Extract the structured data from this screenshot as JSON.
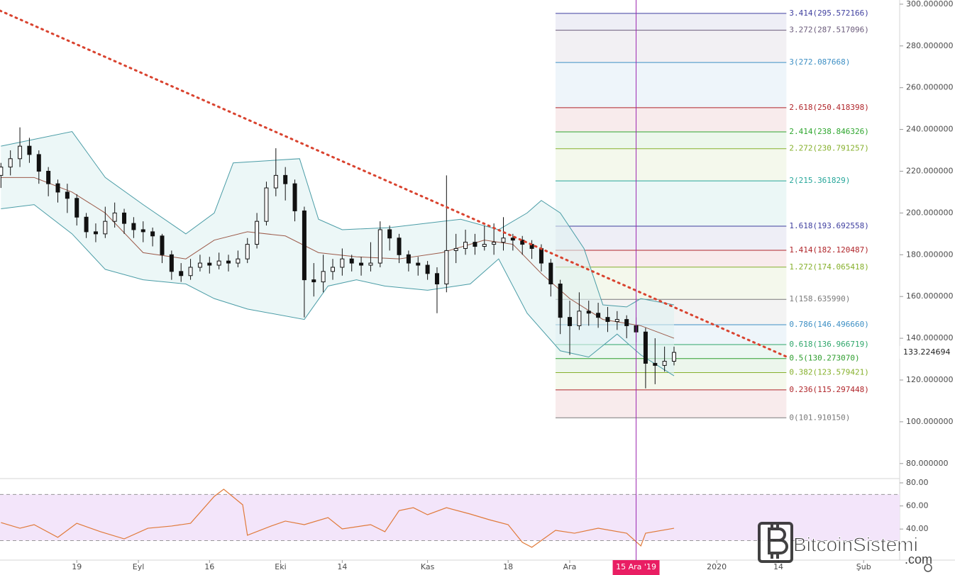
{
  "chart_data": {
    "type": "candlestick",
    "xlim": [
      -16.2,
      173.6
    ],
    "ylim": [
      72.8,
      302
    ],
    "xticks": [
      {
        "value": 0,
        "label": "19"
      },
      {
        "value": 13,
        "label": "Eyl"
      },
      {
        "value": 28,
        "label": "16"
      },
      {
        "value": 43,
        "label": "Eki"
      },
      {
        "value": 56,
        "label": "14"
      },
      {
        "value": 74,
        "label": "Kas"
      },
      {
        "value": 91,
        "label": "18"
      },
      {
        "value": 104,
        "label": "Ara"
      },
      {
        "value": 135,
        "label": "2020"
      },
      {
        "value": 148,
        "label": "14"
      },
      {
        "value": 166,
        "label": "Şub"
      }
    ],
    "yticks": [
      {
        "value": 80,
        "label": "80.000000"
      },
      {
        "value": 100,
        "label": "100.000000"
      },
      {
        "value": 120,
        "label": "120.000000"
      },
      {
        "value": 140,
        "label": "140.000000"
      },
      {
        "value": 160,
        "label": "160.000000"
      },
      {
        "value": 180,
        "label": "180.000000"
      },
      {
        "value": 200,
        "label": "200.000000"
      },
      {
        "value": 220,
        "label": "220.000000"
      },
      {
        "value": 240,
        "label": "240.000000"
      },
      {
        "value": 260,
        "label": "260.000000"
      },
      {
        "value": 280,
        "label": "280.000000"
      },
      {
        "value": 300,
        "label": "300.000000"
      }
    ],
    "crosshair": {
      "value": 118,
      "label": "15 Ara '19",
      "color": "#9c27b0"
    },
    "last_price": 133.224694,
    "candles": [
      {
        "x": -16,
        "open": 218,
        "high": 224,
        "low": 212,
        "close": 222
      },
      {
        "x": -14,
        "open": 222,
        "high": 230,
        "low": 218,
        "close": 226
      },
      {
        "x": -12,
        "open": 226,
        "high": 241,
        "low": 222,
        "close": 232
      },
      {
        "x": -10,
        "open": 232,
        "high": 236,
        "low": 224,
        "close": 228
      },
      {
        "x": -8,
        "open": 228,
        "high": 230,
        "low": 214,
        "close": 220
      },
      {
        "x": -6,
        "open": 220,
        "high": 222,
        "low": 208,
        "close": 214
      },
      {
        "x": -4,
        "open": 214,
        "high": 216,
        "low": 205,
        "close": 210
      },
      {
        "x": -2,
        "open": 210,
        "high": 214,
        "low": 200,
        "close": 207
      },
      {
        "x": 0,
        "open": 207,
        "high": 209,
        "low": 194,
        "close": 198
      },
      {
        "x": 2,
        "open": 198,
        "high": 200,
        "low": 188,
        "close": 191
      },
      {
        "x": 4,
        "open": 191,
        "high": 195,
        "low": 186,
        "close": 190
      },
      {
        "x": 6,
        "open": 190,
        "high": 203,
        "low": 188,
        "close": 196
      },
      {
        "x": 8,
        "open": 196,
        "high": 205,
        "low": 193,
        "close": 200
      },
      {
        "x": 10,
        "open": 200,
        "high": 202,
        "low": 190,
        "close": 195
      },
      {
        "x": 12,
        "open": 195,
        "high": 198,
        "low": 188,
        "close": 192
      },
      {
        "x": 14,
        "open": 192,
        "high": 196,
        "low": 186,
        "close": 191
      },
      {
        "x": 16,
        "open": 191,
        "high": 193,
        "low": 184,
        "close": 189
      },
      {
        "x": 18,
        "open": 189,
        "high": 190,
        "low": 176,
        "close": 180
      },
      {
        "x": 20,
        "open": 180,
        "high": 182,
        "low": 168,
        "close": 172
      },
      {
        "x": 22,
        "open": 172,
        "high": 176,
        "low": 167,
        "close": 170
      },
      {
        "x": 24,
        "open": 170,
        "high": 178,
        "low": 168,
        "close": 174
      },
      {
        "x": 26,
        "open": 174,
        "high": 180,
        "low": 172,
        "close": 176
      },
      {
        "x": 28,
        "open": 176,
        "high": 179,
        "low": 171,
        "close": 175
      },
      {
        "x": 30,
        "open": 175,
        "high": 181,
        "low": 173,
        "close": 177
      },
      {
        "x": 32,
        "open": 177,
        "high": 180,
        "low": 172,
        "close": 176
      },
      {
        "x": 34,
        "open": 176,
        "high": 182,
        "low": 174,
        "close": 178
      },
      {
        "x": 36,
        "open": 178,
        "high": 188,
        "low": 176,
        "close": 185
      },
      {
        "x": 38,
        "open": 185,
        "high": 200,
        "low": 183,
        "close": 196
      },
      {
        "x": 40,
        "open": 196,
        "high": 215,
        "low": 194,
        "close": 212
      },
      {
        "x": 42,
        "open": 212,
        "high": 231,
        "low": 208,
        "close": 218
      },
      {
        "x": 44,
        "open": 218,
        "high": 222,
        "low": 206,
        "close": 214
      },
      {
        "x": 46,
        "open": 214,
        "high": 216,
        "low": 196,
        "close": 201
      },
      {
        "x": 48,
        "open": 201,
        "high": 203,
        "low": 150,
        "close": 168
      },
      {
        "x": 50,
        "open": 168,
        "high": 176,
        "low": 160,
        "close": 167
      },
      {
        "x": 52,
        "open": 167,
        "high": 180,
        "low": 162,
        "close": 172
      },
      {
        "x": 54,
        "open": 172,
        "high": 178,
        "low": 168,
        "close": 174
      },
      {
        "x": 56,
        "open": 174,
        "high": 183,
        "low": 170,
        "close": 178
      },
      {
        "x": 58,
        "open": 178,
        "high": 180,
        "low": 172,
        "close": 176
      },
      {
        "x": 60,
        "open": 176,
        "high": 179,
        "low": 170,
        "close": 175
      },
      {
        "x": 62,
        "open": 175,
        "high": 186,
        "low": 172,
        "close": 176
      },
      {
        "x": 64,
        "open": 176,
        "high": 196,
        "low": 174,
        "close": 192
      },
      {
        "x": 66,
        "open": 192,
        "high": 194,
        "low": 182,
        "close": 188
      },
      {
        "x": 68,
        "open": 188,
        "high": 190,
        "low": 176,
        "close": 180
      },
      {
        "x": 70,
        "open": 180,
        "high": 182,
        "low": 172,
        "close": 176
      },
      {
        "x": 72,
        "open": 176,
        "high": 179,
        "low": 170,
        "close": 175
      },
      {
        "x": 74,
        "open": 175,
        "high": 177,
        "low": 168,
        "close": 171
      },
      {
        "x": 76,
        "open": 171,
        "high": 174,
        "low": 152,
        "close": 166
      },
      {
        "x": 78,
        "open": 166,
        "high": 218,
        "low": 162,
        "close": 182
      },
      {
        "x": 80,
        "open": 182,
        "high": 190,
        "low": 176,
        "close": 183
      },
      {
        "x": 82,
        "open": 183,
        "high": 192,
        "low": 180,
        "close": 186
      },
      {
        "x": 84,
        "open": 186,
        "high": 190,
        "low": 180,
        "close": 184
      },
      {
        "x": 86,
        "open": 184,
        "high": 194,
        "low": 182,
        "close": 185
      },
      {
        "x": 88,
        "open": 185,
        "high": 195,
        "low": 180,
        "close": 186
      },
      {
        "x": 90,
        "open": 186,
        "high": 198,
        "low": 182,
        "close": 188
      },
      {
        "x": 92,
        "open": 188,
        "high": 190,
        "low": 182,
        "close": 187
      },
      {
        "x": 94,
        "open": 187,
        "high": 189,
        "low": 180,
        "close": 185
      },
      {
        "x": 96,
        "open": 185,
        "high": 187,
        "low": 178,
        "close": 183
      },
      {
        "x": 98,
        "open": 183,
        "high": 185,
        "low": 172,
        "close": 176
      },
      {
        "x": 100,
        "open": 176,
        "high": 178,
        "low": 160,
        "close": 166
      },
      {
        "x": 102,
        "open": 166,
        "high": 168,
        "low": 142,
        "close": 150
      },
      {
        "x": 104,
        "open": 150,
        "high": 158,
        "low": 132,
        "close": 146
      },
      {
        "x": 106,
        "open": 146,
        "high": 162,
        "low": 144,
        "close": 153
      },
      {
        "x": 108,
        "open": 153,
        "high": 158,
        "low": 146,
        "close": 152
      },
      {
        "x": 110,
        "open": 152,
        "high": 157,
        "low": 145,
        "close": 150
      },
      {
        "x": 112,
        "open": 150,
        "high": 155,
        "low": 143,
        "close": 148
      },
      {
        "x": 114,
        "open": 148,
        "high": 153,
        "low": 144,
        "close": 149
      },
      {
        "x": 116,
        "open": 149,
        "high": 151,
        "low": 140,
        "close": 146
      },
      {
        "x": 118,
        "open": 146,
        "high": 150,
        "low": 138,
        "close": 143
      },
      {
        "x": 120,
        "open": 143,
        "high": 145,
        "low": 116,
        "close": 128
      },
      {
        "x": 122,
        "open": 128,
        "high": 140,
        "low": 118,
        "close": 127
      },
      {
        "x": 124,
        "open": 127,
        "high": 136,
        "low": 124,
        "close": 129
      },
      {
        "x": 126,
        "open": 129,
        "high": 136,
        "low": 127,
        "close": 133.224694
      }
    ],
    "bollinger": {
      "fill": "#e0f2f1",
      "upper": {
        "color": "#4a9ca6",
        "x": [
          -16,
          -1,
          6,
          14,
          23,
          29,
          33,
          47,
          51,
          56,
          66,
          81,
          89,
          95,
          98,
          102,
          107,
          111,
          116,
          119,
          126
        ],
        "values": [
          232,
          239,
          217,
          204,
          190,
          200,
          224,
          226,
          197,
          192,
          193,
          197,
          192,
          200,
          206,
          200,
          183,
          156,
          155,
          159,
          156
        ]
      },
      "middle": {
        "color": "#9c5a4a",
        "x": [
          -16,
          -9,
          -1,
          6,
          14,
          23,
          29,
          36,
          44,
          51,
          59,
          68,
          77,
          86,
          92,
          98,
          104,
          111,
          119,
          126
        ],
        "values": [
          217,
          217,
          210,
          200,
          181,
          178,
          187,
          191,
          189,
          181,
          179,
          178,
          181,
          187,
          185,
          171,
          159,
          149,
          146,
          140
        ]
      },
      "lower": {
        "color": "#4a9ca6",
        "x": [
          -16,
          -9,
          -1,
          6,
          14,
          23,
          29,
          36,
          48,
          53,
          59,
          65,
          74,
          83,
          89,
          95,
          102,
          108,
          114,
          119,
          126
        ],
        "values": [
          202,
          204,
          190,
          173,
          168,
          166,
          159,
          154,
          149,
          165,
          168,
          165,
          163,
          166,
          178,
          152,
          134,
          131,
          142,
          132,
          122
        ]
      }
    },
    "trendline": {
      "x": [
        -16.2,
        149.7
      ],
      "y": [
        296.9,
        131.2
      ],
      "color": "#d9432f"
    },
    "fibonacci": {
      "x": [
        101,
        149.7
      ],
      "levels": [
        {
          "label": "3.414(295.572166)",
          "value": 295.572166,
          "color": "#3f3f9f"
        },
        {
          "label": "3.272(287.517096)",
          "value": 287.517096,
          "color": "#6b5b7b"
        },
        {
          "label": "3(272.087668)",
          "value": 272.087668,
          "color": "#3d8fc4"
        },
        {
          "label": "2.618(250.418398)",
          "value": 250.418398,
          "color": "#b0252a"
        },
        {
          "label": "2.414(238.846326)",
          "value": 238.846326,
          "color": "#2ea62e"
        },
        {
          "label": "2.272(230.791257)",
          "value": 230.791257,
          "color": "#86b02c"
        },
        {
          "label": "2(215.361829)",
          "value": 215.361829,
          "color": "#26a69a"
        },
        {
          "label": "1.618(193.692558)",
          "value": 193.692558,
          "color": "#3f3f9f"
        },
        {
          "label": "1.414(182.120487)",
          "value": 182.120487,
          "color": "#b0252a"
        },
        {
          "label": "1.272(174.065418)",
          "value": 174.065418,
          "color": "#86b02c"
        },
        {
          "label": "1(158.635990)",
          "value": 158.63599,
          "color": "#7a7a7a"
        },
        {
          "label": "0.786(146.496660)",
          "value": 146.49666,
          "color": "#3d8fc4"
        },
        {
          "label": "0.618(136.966719)",
          "value": 136.966719,
          "color": "#2ea66a"
        },
        {
          "label": "0.5(130.273070)",
          "value": 130.27307,
          "color": "#2e9d2e"
        },
        {
          "label": "0.382(123.579421)",
          "value": 123.579421,
          "color": "#86b02c"
        },
        {
          "label": "0.236(115.297448)",
          "value": 115.297448,
          "color": "#b0252a"
        },
        {
          "label": "0(101.910150)",
          "value": 101.91015,
          "color": "#7a7a7a"
        }
      ]
    },
    "rsi": {
      "type": "line",
      "color": "#e07a3a",
      "ylim": [
        13.1,
        83.7
      ],
      "bands": [
        30,
        70
      ],
      "band_color": "#f3e5fa",
      "yticks": [
        {
          "value": 80,
          "label": "80.00"
        },
        {
          "value": 60,
          "label": "60.00"
        },
        {
          "value": 40,
          "label": "40.00"
        }
      ],
      "x": [
        -16,
        -12,
        -9,
        -4,
        0,
        5,
        10,
        15,
        20,
        24,
        29,
        31,
        35,
        36,
        41,
        44,
        48,
        53,
        56,
        62,
        65,
        68,
        71,
        74,
        78,
        83,
        87,
        91,
        94,
        96,
        101,
        105,
        110,
        116,
        119,
        120,
        126
      ],
      "values": [
        45.6,
        40.7,
        43.8,
        32.8,
        45,
        37.7,
        31.5,
        40.7,
        42.6,
        45,
        68.3,
        74.5,
        61,
        34.6,
        42.6,
        46.9,
        43.8,
        49.9,
        40.1,
        43.8,
        37.7,
        56,
        58.5,
        52.4,
        58.5,
        53,
        48.1,
        43.8,
        28.5,
        24.2,
        38.9,
        36.4,
        40.7,
        36.4,
        25.4,
        36.4,
        40.7
      ]
    },
    "watermark": {
      "name": "BitcoinSistemi",
      "domain": ".com"
    }
  }
}
